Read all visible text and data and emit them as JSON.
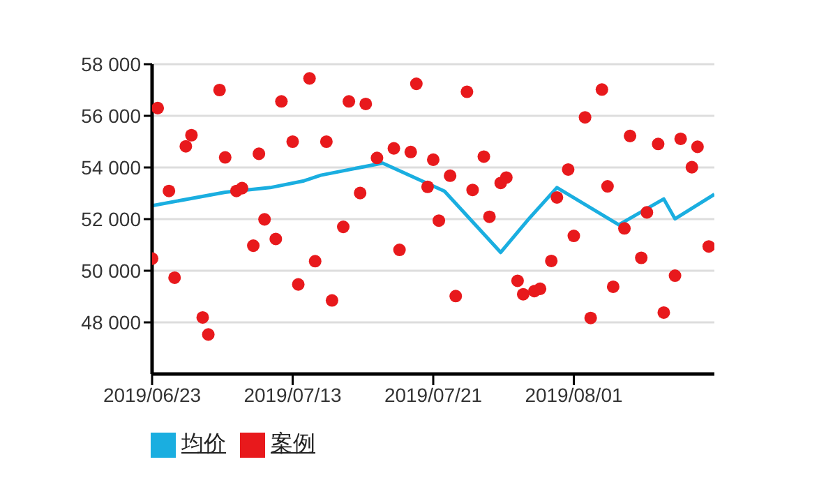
{
  "chart_data": {
    "type": "scatter",
    "categories": [
      "2019/06/23",
      null,
      null,
      null,
      null,
      null,
      null,
      null,
      null,
      null,
      null,
      null,
      null,
      null,
      null,
      null,
      null,
      null,
      null,
      null,
      null,
      null,
      null,
      null,
      null,
      "2019/07/13",
      null,
      null,
      null,
      null,
      null,
      null,
      null,
      null,
      null,
      null,
      null,
      null,
      null,
      null,
      null,
      null,
      null,
      null,
      null,
      null,
      null,
      null,
      null,
      null,
      "2019/07/21",
      null,
      null,
      null,
      null,
      null,
      null,
      null,
      null,
      null,
      null,
      null,
      null,
      null,
      null,
      null,
      null,
      null,
      null,
      null,
      null,
      null,
      null,
      null,
      null,
      "2019/08/01",
      null,
      null,
      null,
      null,
      null,
      null,
      null,
      null,
      null,
      null,
      null,
      null,
      null,
      null,
      null,
      null,
      null,
      null,
      null,
      null,
      null,
      null,
      null,
      null,
      null
    ],
    "series": [
      {
        "name": "案例",
        "marker": "circle",
        "color": "#e8191c",
        "values": [
          50470,
          56300,
          null,
          53090,
          49730,
          null,
          54820,
          55250,
          null,
          48190,
          47530,
          null,
          57000,
          54390,
          null,
          53090,
          53200,
          null,
          50970,
          54530,
          51990,
          null,
          51230,
          56560,
          null,
          55000,
          49470,
          null,
          57450,
          50370,
          null,
          55000,
          48850,
          null,
          51700,
          56560,
          null,
          53010,
          56460,
          null,
          54370,
          null,
          null,
          54740,
          50810,
          null,
          54600,
          57240,
          null,
          53250,
          54300,
          51940,
          null,
          53680,
          49020,
          null,
          56930,
          53130,
          null,
          54420,
          52090,
          null,
          53400,
          53610,
          null,
          49610,
          49090,
          null,
          49210,
          49300,
          null,
          50380,
          52840,
          null,
          53920,
          51350,
          null,
          55940,
          48170,
          null,
          57020,
          53270,
          49380,
          null,
          51640,
          55220,
          null,
          50500,
          52260,
          null,
          54910,
          48380,
          null,
          49810,
          55110,
          null,
          54010,
          54800,
          null,
          50940,
          null
        ]
      },
      {
        "name": "均价",
        "type": "line",
        "color": "#1aaee0",
        "values": [
          52520,
          null,
          null,
          null,
          null,
          null,
          null,
          null,
          null,
          null,
          null,
          null,
          null,
          53040,
          null,
          null,
          null,
          null,
          null,
          null,
          null,
          53220,
          null,
          null,
          null,
          null,
          null,
          53480,
          null,
          null,
          53700,
          null,
          null,
          null,
          null,
          null,
          null,
          null,
          null,
          null,
          null,
          54170,
          null,
          null,
          null,
          null,
          null,
          null,
          null,
          null,
          null,
          null,
          53080,
          null,
          null,
          null,
          null,
          null,
          null,
          null,
          null,
          null,
          50710,
          null,
          null,
          null,
          null,
          52010,
          null,
          null,
          null,
          null,
          53220,
          null,
          null,
          null,
          null,
          null,
          null,
          null,
          null,
          null,
          null,
          51780,
          null,
          null,
          null,
          null,
          null,
          null,
          null,
          52780,
          null,
          52010,
          null,
          null,
          null,
          null,
          null,
          null,
          52960
        ]
      }
    ],
    "ylim": [
      46000,
      58000
    ],
    "yticks": [
      {
        "value": 48000,
        "label": "48 000"
      },
      {
        "value": 50000,
        "label": "50 000"
      },
      {
        "value": 52000,
        "label": "52 000"
      },
      {
        "value": 54000,
        "label": "54 000"
      },
      {
        "value": 56000,
        "label": "56 000"
      },
      {
        "value": 58000,
        "label": "58 000"
      }
    ],
    "grid": "y",
    "legend": "bottom"
  }
}
